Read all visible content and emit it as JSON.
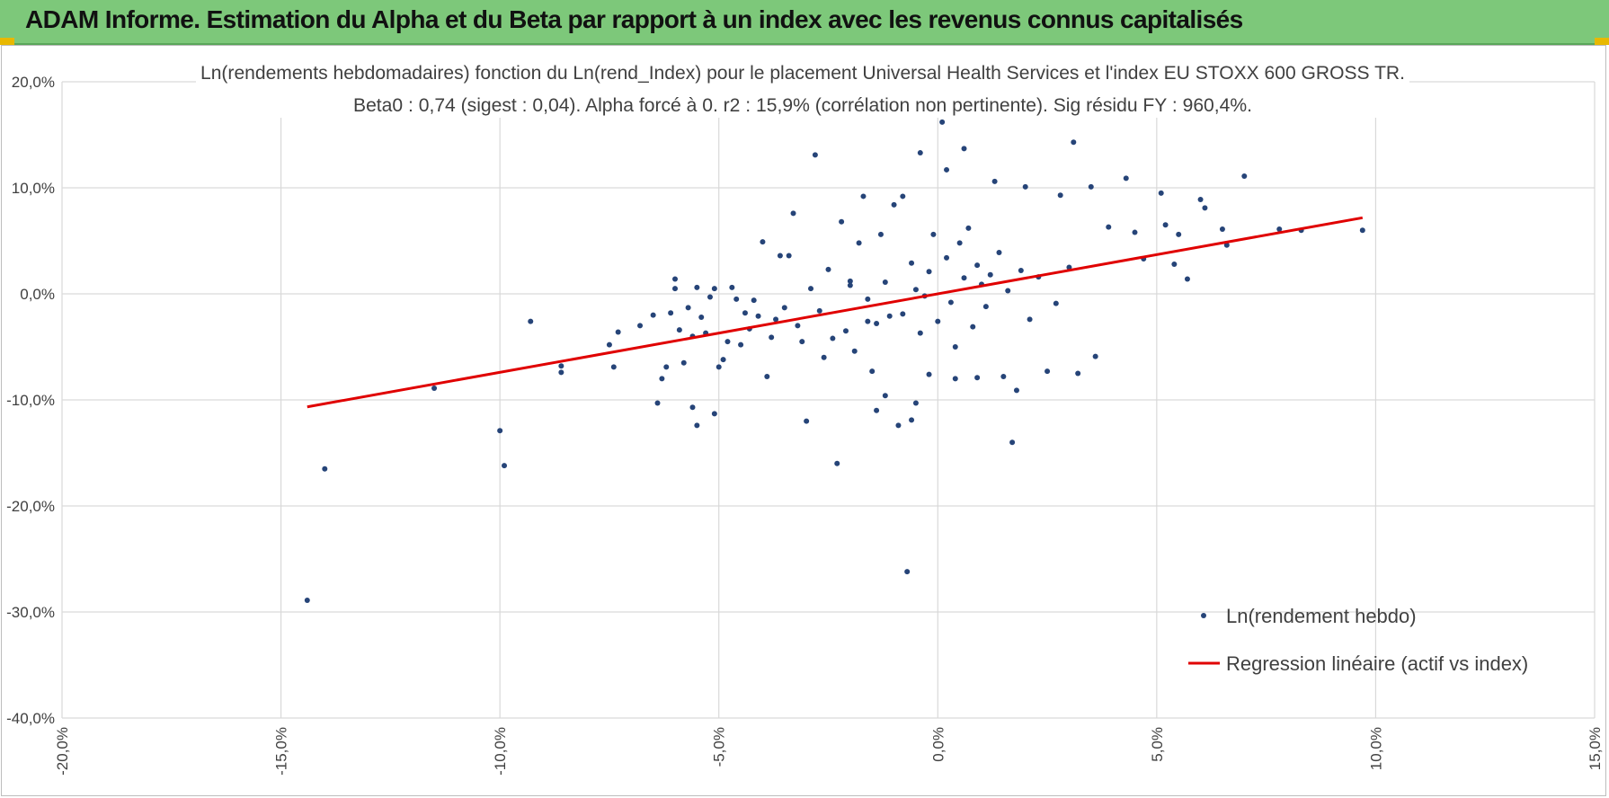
{
  "banner": {
    "title": "ADAM Informe. Estimation du Alpha et du Beta par rapport à un index avec les revenus connus capitalisés",
    "color": "#7dc87a"
  },
  "chart_data": {
    "type": "scatter",
    "title": "Ln(rendements hebdomadaires) fonction du Ln(rend_Index) pour le placement Universal Health Services  et l'index EU STOXX 600 GROSS TR.",
    "subtitle": "Beta0 : 0,74 (sigest : 0,04).  Alpha forcé à 0. r2 : 15,9% (corrélation non pertinente). Sig résidu FY : 960,4%.",
    "xlabel": "",
    "ylabel": "",
    "xlim": [
      -20,
      15
    ],
    "ylim": [
      -40,
      20
    ],
    "x_ticks": [
      -20,
      -15,
      -10,
      -5,
      0,
      5,
      10,
      15
    ],
    "y_ticks": [
      -40,
      -30,
      -20,
      -10,
      0,
      10,
      20
    ],
    "x_tick_labels": [
      "-20,0%",
      "-15,0%",
      "-10,0%",
      "-5,0%",
      "0,0%",
      "5,0%",
      "10,0%",
      "15,0%"
    ],
    "y_tick_labels": [
      "-40,0%",
      "-30,0%",
      "-20,0%",
      "-10,0%",
      "0,0%",
      "10,0%",
      "20,0%"
    ],
    "grid": true,
    "legend_position": "bottom-right",
    "series": [
      {
        "name": "Ln(rendement hebdo)",
        "kind": "scatter",
        "color": "#264478",
        "points": [
          [
            -14.4,
            -28.9
          ],
          [
            -14.0,
            -16.5
          ],
          [
            -11.5,
            -8.9
          ],
          [
            -10.0,
            -12.9
          ],
          [
            -9.9,
            -16.2
          ],
          [
            -9.3,
            -2.6
          ],
          [
            -8.6,
            -7.4
          ],
          [
            -8.6,
            -6.8
          ],
          [
            -7.5,
            -4.8
          ],
          [
            -7.4,
            -6.9
          ],
          [
            -7.3,
            -3.6
          ],
          [
            -6.8,
            -3.0
          ],
          [
            -6.5,
            -2.0
          ],
          [
            -6.4,
            -10.3
          ],
          [
            -6.3,
            -8.0
          ],
          [
            -6.2,
            -6.9
          ],
          [
            -6.1,
            -1.8
          ],
          [
            -6.0,
            1.4
          ],
          [
            -6.0,
            0.5
          ],
          [
            -5.9,
            -3.4
          ],
          [
            -5.8,
            -6.5
          ],
          [
            -5.7,
            -1.3
          ],
          [
            -5.6,
            -10.7
          ],
          [
            -5.6,
            -4.0
          ],
          [
            -5.5,
            -12.4
          ],
          [
            -5.5,
            0.6
          ],
          [
            -5.4,
            -2.2
          ],
          [
            -5.3,
            -3.7
          ],
          [
            -5.2,
            -0.3
          ],
          [
            -5.1,
            -11.3
          ],
          [
            -5.1,
            0.5
          ],
          [
            -5.0,
            -6.9
          ],
          [
            -4.9,
            -6.2
          ],
          [
            -4.8,
            -4.5
          ],
          [
            -4.7,
            0.6
          ],
          [
            -4.6,
            -0.5
          ],
          [
            -4.5,
            -4.8
          ],
          [
            -4.4,
            -1.8
          ],
          [
            -4.3,
            -3.3
          ],
          [
            -4.2,
            -0.6
          ],
          [
            -4.1,
            -2.1
          ],
          [
            -4.0,
            4.9
          ],
          [
            -3.9,
            -7.8
          ],
          [
            -3.8,
            -4.1
          ],
          [
            -3.7,
            -2.4
          ],
          [
            -3.6,
            3.6
          ],
          [
            -3.5,
            -1.3
          ],
          [
            -3.4,
            3.6
          ],
          [
            -3.3,
            7.6
          ],
          [
            -3.2,
            -3.0
          ],
          [
            -3.1,
            -4.5
          ],
          [
            -3.0,
            -12.0
          ],
          [
            -2.9,
            0.5
          ],
          [
            -2.8,
            13.1
          ],
          [
            -2.7,
            -1.6
          ],
          [
            -2.6,
            -6.0
          ],
          [
            -2.5,
            2.3
          ],
          [
            -2.4,
            -4.2
          ],
          [
            -2.3,
            -16.0
          ],
          [
            -2.2,
            6.8
          ],
          [
            -2.1,
            -3.5
          ],
          [
            -2.0,
            1.2
          ],
          [
            -1.9,
            -5.4
          ],
          [
            -1.8,
            4.8
          ],
          [
            -1.7,
            9.2
          ],
          [
            -1.6,
            -2.6
          ],
          [
            -1.5,
            -7.3
          ],
          [
            -1.4,
            -11.0
          ],
          [
            -1.3,
            5.6
          ],
          [
            -1.2,
            -9.6
          ],
          [
            -1.1,
            -2.1
          ],
          [
            -1.0,
            8.4
          ],
          [
            -0.9,
            -12.4
          ],
          [
            -0.8,
            9.2
          ],
          [
            -0.7,
            -26.2
          ],
          [
            -0.6,
            -11.9
          ],
          [
            -0.5,
            -10.3
          ],
          [
            -0.4,
            13.3
          ],
          [
            -0.2,
            -7.6
          ],
          [
            0.1,
            16.2
          ],
          [
            0.2,
            11.7
          ],
          [
            0.4,
            -8.0
          ],
          [
            0.6,
            13.7
          ],
          [
            0.9,
            -7.9
          ],
          [
            1.3,
            10.6
          ],
          [
            1.5,
            -7.8
          ],
          [
            1.7,
            -14.0
          ],
          [
            1.8,
            -9.1
          ],
          [
            2.0,
            10.1
          ],
          [
            2.5,
            -7.3
          ],
          [
            2.8,
            9.3
          ],
          [
            3.1,
            14.3
          ],
          [
            3.2,
            -7.5
          ],
          [
            3.5,
            10.1
          ],
          [
            3.6,
            -5.9
          ],
          [
            3.9,
            6.3
          ],
          [
            4.3,
            10.9
          ],
          [
            4.5,
            5.8
          ],
          [
            4.7,
            3.3
          ],
          [
            5.1,
            9.5
          ],
          [
            5.2,
            6.5
          ],
          [
            5.4,
            2.8
          ],
          [
            5.5,
            5.6
          ],
          [
            5.7,
            1.4
          ],
          [
            6.0,
            8.9
          ],
          [
            6.1,
            8.1
          ],
          [
            6.6,
            4.6
          ],
          [
            6.5,
            6.1
          ],
          [
            7.0,
            11.1
          ],
          [
            7.8,
            6.1
          ],
          [
            8.3,
            6.0
          ],
          [
            9.7,
            6.0
          ],
          [
            -0.2,
            2.1
          ],
          [
            0.3,
            -0.8
          ],
          [
            0.6,
            1.5
          ],
          [
            -0.5,
            0.4
          ],
          [
            1.1,
            -1.2
          ],
          [
            0.2,
            3.4
          ],
          [
            -0.8,
            -1.9
          ],
          [
            0.9,
            2.7
          ],
          [
            1.6,
            0.3
          ],
          [
            -1.2,
            1.1
          ],
          [
            0.0,
            -2.6
          ],
          [
            0.5,
            4.8
          ],
          [
            1.9,
            2.2
          ],
          [
            -0.4,
            -3.7
          ],
          [
            2.3,
            1.6
          ],
          [
            -1.6,
            -0.5
          ],
          [
            0.8,
            -3.1
          ],
          [
            1.4,
            3.9
          ],
          [
            -0.1,
            5.6
          ],
          [
            2.7,
            -0.9
          ],
          [
            -2.0,
            0.8
          ],
          [
            0.4,
            -5.0
          ],
          [
            1.0,
            0.9
          ],
          [
            -0.6,
            2.9
          ],
          [
            3.0,
            2.5
          ],
          [
            -1.4,
            -2.8
          ],
          [
            0.7,
            6.2
          ],
          [
            2.1,
            -2.4
          ],
          [
            -0.3,
            -0.2
          ],
          [
            1.2,
            1.8
          ]
        ]
      },
      {
        "name": "Regression linéaire (actif vs index)",
        "kind": "line",
        "color": "#e00000",
        "slope": 0.74,
        "intercept": 0,
        "x_range": [
          -14.4,
          9.7
        ]
      }
    ]
  }
}
